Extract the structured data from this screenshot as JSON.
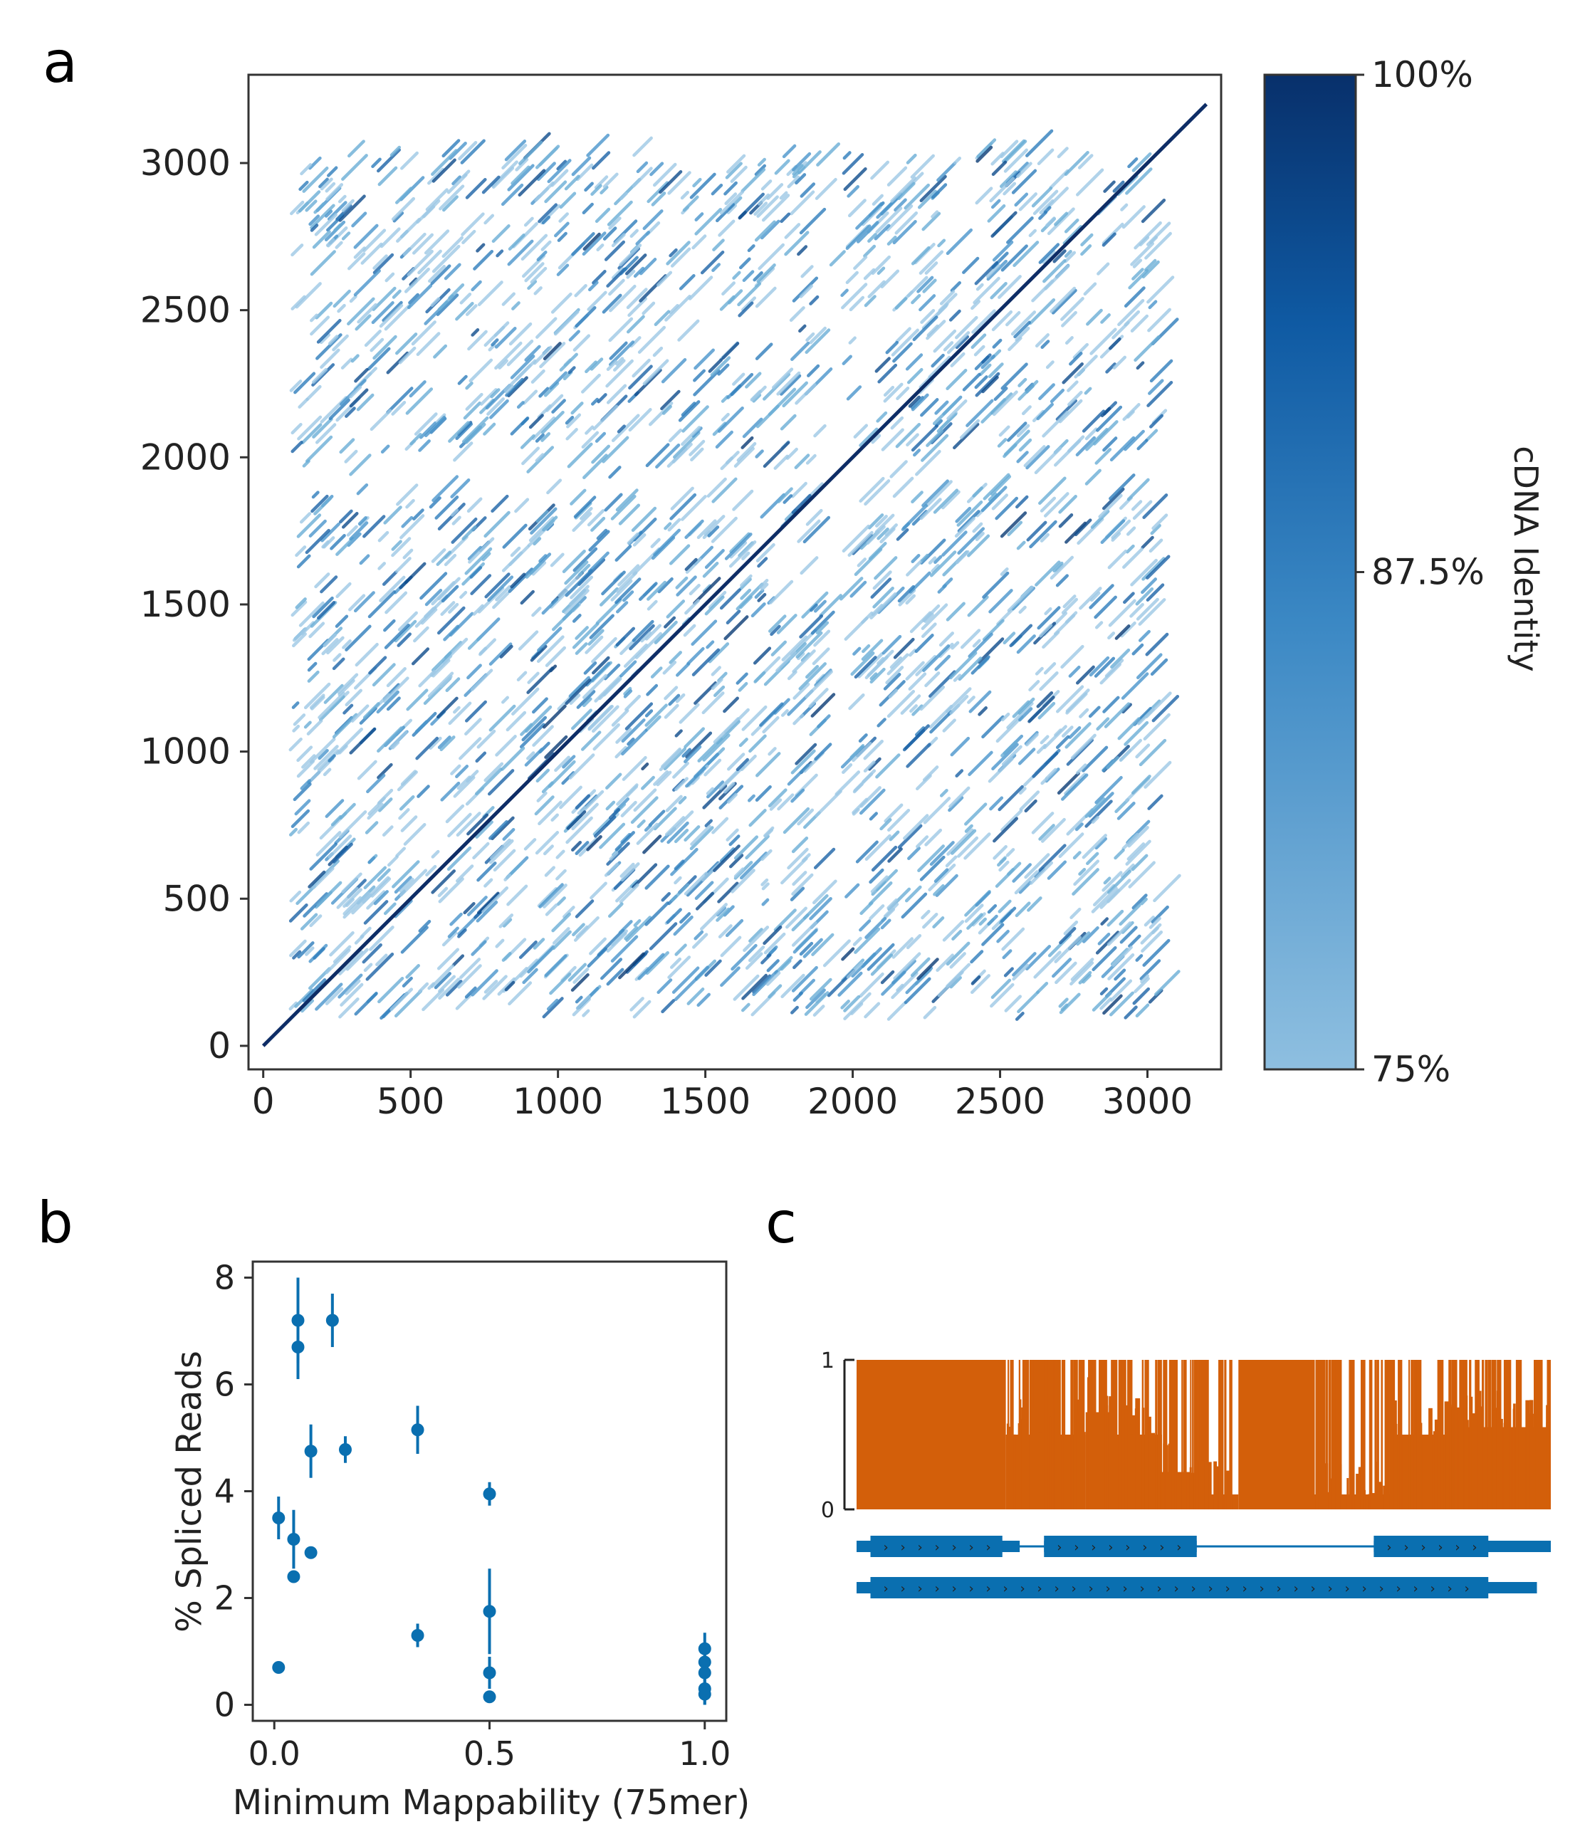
{
  "panels": {
    "a": "a",
    "b": "b",
    "c": "c"
  },
  "chart_data": [
    {
      "panel": "a",
      "type": "scatter",
      "subtype": "dot-plot self-alignment",
      "xlim": [
        -50,
        3250
      ],
      "ylim": [
        -80,
        3300
      ],
      "xticks": [
        0,
        500,
        1000,
        1500,
        2000,
        2500,
        3000
      ],
      "yticks": [
        0,
        500,
        1000,
        1500,
        2000,
        2500,
        3000
      ],
      "xtick_labels": [
        "0",
        "500",
        "1000",
        "1500",
        "2000",
        "2500",
        "3000"
      ],
      "ytick_labels": [
        "0",
        "500",
        "1000",
        "1500",
        "2000",
        "2500",
        "3000"
      ],
      "diagonal": {
        "from": [
          0,
          0
        ],
        "to": [
          3200,
          3200
        ]
      },
      "repeat_region": [
        90,
        3030
      ],
      "gap_band": [
        1880,
        1960
      ],
      "colorbar": {
        "label": "cDNA Identity",
        "ticks": [
          "100%",
          "87.5%",
          "75%"
        ],
        "range": [
          75,
          100
        ],
        "colors": [
          "#8ebfe0",
          "#08306b"
        ]
      }
    },
    {
      "panel": "b",
      "type": "scatter",
      "xlabel": "Minimum Mappability (75mer)",
      "ylabel": "% Spliced Reads",
      "xlim": [
        -0.05,
        1.05
      ],
      "ylim": [
        -0.3,
        8.3
      ],
      "xticks": [
        0.0,
        0.5,
        1.0
      ],
      "xtick_labels": [
        "0.0",
        "0.5",
        "1.0"
      ],
      "yticks": [
        0,
        2,
        4,
        6,
        8
      ],
      "ytick_labels": [
        "0",
        "2",
        "4",
        "6",
        "8"
      ],
      "color": "#0a6fb0",
      "points": [
        {
          "x": 0.01,
          "y": 3.5,
          "err": 0.4
        },
        {
          "x": 0.01,
          "y": 0.7,
          "err": 0.0
        },
        {
          "x": 0.045,
          "y": 3.1,
          "err": 0.55
        },
        {
          "x": 0.045,
          "y": 2.4,
          "err": 0.1
        },
        {
          "x": 0.055,
          "y": 7.2,
          "err": 0.8
        },
        {
          "x": 0.055,
          "y": 6.7,
          "err": 0.6
        },
        {
          "x": 0.085,
          "y": 4.75,
          "err": 0.5
        },
        {
          "x": 0.085,
          "y": 2.85,
          "err": 0.05
        },
        {
          "x": 0.135,
          "y": 7.2,
          "err": 0.5
        },
        {
          "x": 0.165,
          "y": 4.78,
          "err": 0.25
        },
        {
          "x": 0.333,
          "y": 5.15,
          "err": 0.45
        },
        {
          "x": 0.333,
          "y": 1.3,
          "err": 0.22
        },
        {
          "x": 0.5,
          "y": 3.95,
          "err": 0.22
        },
        {
          "x": 0.5,
          "y": 1.75,
          "err": 0.8
        },
        {
          "x": 0.5,
          "y": 0.6,
          "err": 0.3
        },
        {
          "x": 0.5,
          "y": 0.15,
          "err": 0.05
        },
        {
          "x": 1.0,
          "y": 1.05,
          "err": 0.3
        },
        {
          "x": 1.0,
          "y": 0.8,
          "err": 0.25
        },
        {
          "x": 1.0,
          "y": 0.6,
          "err": 0.25
        },
        {
          "x": 1.0,
          "y": 0.3,
          "err": 0.3
        },
        {
          "x": 1.0,
          "y": 0.2,
          "err": 0.2
        }
      ]
    },
    {
      "panel": "c",
      "type": "area",
      "subtype": "coverage / mappability track with gene models",
      "yticks": [
        "0",
        "1"
      ],
      "ylim": [
        0,
        1
      ],
      "color": "#d35f0a",
      "coverage_segments": [
        {
          "from": 0.0,
          "to": 0.215,
          "value": 1.0
        },
        {
          "from": 0.215,
          "to": 0.33,
          "value": 0.5
        },
        {
          "from": 0.33,
          "to": 0.37,
          "value": 0.65
        },
        {
          "from": 0.37,
          "to": 0.44,
          "value": 0.5
        },
        {
          "from": 0.44,
          "to": 0.48,
          "value": 0.25
        },
        {
          "from": 0.48,
          "to": 0.55,
          "value": 0.1
        },
        {
          "from": 0.55,
          "to": 0.66,
          "value": 1.0
        },
        {
          "from": 0.66,
          "to": 0.77,
          "value": 0.1
        },
        {
          "from": 0.77,
          "to": 0.86,
          "value": 0.5
        },
        {
          "from": 0.86,
          "to": 1.0,
          "value": 0.55
        }
      ],
      "gene_models": [
        {
          "name": "",
          "exons": [
            [
              0.0,
              0.235
            ],
            [
              0.27,
              0.49
            ],
            [
              0.745,
              1.0
            ]
          ],
          "cds": [
            [
              0.02,
              0.21
            ],
            [
              0.27,
              0.49
            ],
            [
              0.745,
              0.91
            ]
          ]
        },
        {
          "name": "",
          "exons": [
            [
              0.0,
              0.98
            ]
          ],
          "cds": [
            [
              0.02,
              0.91
            ]
          ]
        }
      ]
    }
  ]
}
